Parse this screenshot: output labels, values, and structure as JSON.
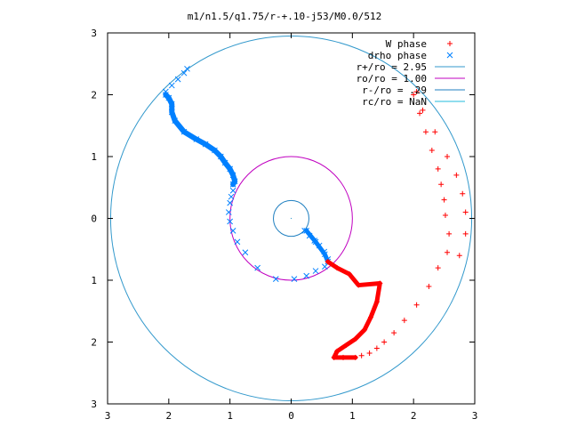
{
  "chart_data": {
    "type": "scatter",
    "title": "m1/n1.5/q1.75/r-+.10-j53/M0.0/512",
    "xlim": [
      -3,
      3
    ],
    "ylim": [
      -3,
      3
    ],
    "x_tick_labels": [
      "3",
      "2",
      "1",
      "0",
      "1",
      "2",
      "3"
    ],
    "x_tick_values": [
      -3,
      -2,
      -1,
      0,
      1,
      2,
      3
    ],
    "y_tick_labels": [
      "3",
      "2",
      "1",
      "0",
      "1",
      "2",
      "3"
    ],
    "y_tick_values": [
      3,
      2,
      1,
      0,
      -1,
      -2,
      -3
    ],
    "grid": false,
    "legend_position": "top-right",
    "legend": [
      {
        "label": "W phase",
        "color": "#ff0000",
        "symbol": "+"
      },
      {
        "label": "drho phase",
        "color": "#0080ff",
        "symbol": "x"
      },
      {
        "label": "r+/ro = 2.95",
        "color": "#3399cc",
        "symbol": "line"
      },
      {
        "label": "ro/ro = 1.00",
        "color": "#c000c0",
        "symbol": "line"
      },
      {
        "label": "r-/ro = .29",
        "color": "#1f7fc0",
        "symbol": "line"
      },
      {
        "label": "rc/ro = NaN",
        "color": "#22bbdd",
        "symbol": "line"
      }
    ],
    "circles": [
      {
        "name": "r+/ro",
        "radius": 2.95,
        "color": "#3399cc"
      },
      {
        "name": "ro/ro",
        "radius": 1.0,
        "color": "#c000c0"
      },
      {
        "name": "r-/ro",
        "radius": 0.29,
        "color": "#1f7fc0"
      }
    ],
    "series": [
      {
        "name": "drho phase",
        "color": "#0080ff",
        "marker": "x",
        "polyline": [
          [
            0.25,
            -0.2
          ],
          [
            0.4,
            -0.38
          ],
          [
            0.55,
            -0.58
          ],
          [
            0.6,
            -0.7
          ]
        ],
        "dense": [
          [
            0.22,
            -0.2
          ],
          [
            0.3,
            -0.28
          ],
          [
            0.38,
            -0.36
          ],
          [
            0.46,
            -0.44
          ],
          [
            0.54,
            -0.54
          ],
          [
            0.6,
            -0.66
          ],
          [
            -0.95,
            0.55
          ],
          [
            -0.92,
            0.6
          ],
          [
            -0.95,
            0.7
          ],
          [
            -1.0,
            0.8
          ],
          [
            -1.08,
            0.9
          ],
          [
            -1.15,
            1.0
          ],
          [
            -1.25,
            1.1
          ],
          [
            -1.4,
            1.2
          ],
          [
            -1.55,
            1.28
          ],
          [
            -1.75,
            1.4
          ],
          [
            -1.9,
            1.58
          ],
          [
            -1.95,
            1.72
          ],
          [
            -1.95,
            1.85
          ],
          [
            -2.0,
            1.95
          ],
          [
            -2.05,
            2.0
          ]
        ],
        "sparse": [
          [
            -0.95,
            0.45
          ],
          [
            -0.98,
            0.35
          ],
          [
            -1.0,
            0.25
          ],
          [
            -1.02,
            0.1
          ],
          [
            -1.0,
            -0.05
          ],
          [
            -0.95,
            -0.2
          ],
          [
            -0.88,
            -0.38
          ],
          [
            -0.75,
            -0.55
          ],
          [
            -0.55,
            -0.8
          ],
          [
            -0.25,
            -0.98
          ],
          [
            0.05,
            -0.98
          ],
          [
            0.25,
            -0.93
          ],
          [
            0.4,
            -0.85
          ],
          [
            0.55,
            -0.78
          ],
          [
            -2.05,
            2.05
          ],
          [
            -1.95,
            2.15
          ],
          [
            -1.85,
            2.25
          ],
          [
            -1.75,
            2.35
          ],
          [
            -1.7,
            2.42
          ]
        ]
      },
      {
        "name": "W phase",
        "color": "#ff0000",
        "marker": "+",
        "polyline": [
          [
            0.6,
            -0.7
          ],
          [
            0.75,
            -0.8
          ],
          [
            0.95,
            -0.9
          ],
          [
            1.1,
            -1.08
          ],
          [
            1.45,
            -1.05
          ],
          [
            1.4,
            -1.35
          ],
          [
            1.3,
            -1.6
          ],
          [
            1.2,
            -1.8
          ],
          [
            1.05,
            -1.95
          ],
          [
            0.9,
            -2.05
          ],
          [
            0.75,
            -2.15
          ],
          [
            0.7,
            -2.25
          ],
          [
            0.85,
            -2.25
          ],
          [
            1.05,
            -2.25
          ]
        ],
        "sparse": [
          [
            1.15,
            -2.22
          ],
          [
            1.28,
            -2.18
          ],
          [
            1.4,
            -2.1
          ],
          [
            1.52,
            -2.0
          ],
          [
            1.68,
            -1.85
          ],
          [
            1.85,
            -1.65
          ],
          [
            2.05,
            -1.4
          ],
          [
            2.25,
            -1.1
          ],
          [
            2.4,
            -0.8
          ],
          [
            2.55,
            -0.55
          ],
          [
            2.58,
            -0.25
          ],
          [
            2.52,
            0.05
          ],
          [
            2.5,
            0.3
          ],
          [
            2.45,
            0.55
          ],
          [
            2.4,
            0.8
          ],
          [
            2.3,
            1.1
          ],
          [
            2.2,
            1.4
          ],
          [
            2.1,
            1.7
          ],
          [
            2.0,
            2.0
          ],
          [
            2.75,
            -0.6
          ],
          [
            2.85,
            -0.25
          ],
          [
            2.85,
            0.1
          ],
          [
            2.8,
            0.4
          ],
          [
            2.7,
            0.7
          ],
          [
            2.55,
            1.0
          ],
          [
            2.35,
            1.4
          ],
          [
            2.15,
            1.75
          ],
          [
            2.05,
            2.05
          ]
        ]
      }
    ]
  }
}
